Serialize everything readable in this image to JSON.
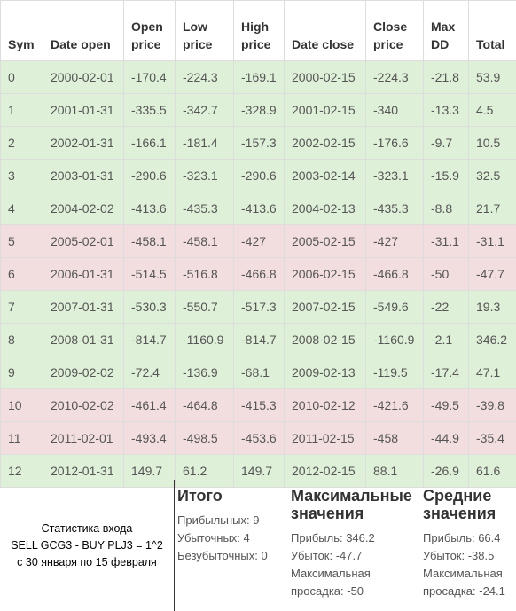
{
  "table": {
    "headers": [
      "Sym",
      "Date open",
      "Open price",
      "Low price",
      "High price",
      "Date close",
      "Close price",
      "Max DD",
      "Total"
    ],
    "rows": [
      {
        "result": "win",
        "cells": [
          "0",
          "2000-02-01",
          "-170.4",
          "-224.3",
          "-169.1",
          "2000-02-15",
          "-224.3",
          "-21.8",
          "53.9"
        ]
      },
      {
        "result": "win",
        "cells": [
          "1",
          "2001-01-31",
          "-335.5",
          "-342.7",
          "-328.9",
          "2001-02-15",
          "-340",
          "-13.3",
          "4.5"
        ]
      },
      {
        "result": "win",
        "cells": [
          "2",
          "2002-01-31",
          "-166.1",
          "-181.4",
          "-157.3",
          "2002-02-15",
          "-176.6",
          "-9.7",
          "10.5"
        ]
      },
      {
        "result": "win",
        "cells": [
          "3",
          "2003-01-31",
          "-290.6",
          "-323.1",
          "-290.6",
          "2003-02-14",
          "-323.1",
          "-15.9",
          "32.5"
        ]
      },
      {
        "result": "win",
        "cells": [
          "4",
          "2004-02-02",
          "-413.6",
          "-435.3",
          "-413.6",
          "2004-02-13",
          "-435.3",
          "-8.8",
          "21.7"
        ]
      },
      {
        "result": "loss",
        "cells": [
          "5",
          "2005-02-01",
          "-458.1",
          "-458.1",
          "-427",
          "2005-02-15",
          "-427",
          "-31.1",
          "-31.1"
        ]
      },
      {
        "result": "loss",
        "cells": [
          "6",
          "2006-01-31",
          "-514.5",
          "-516.8",
          "-466.8",
          "2006-02-15",
          "-466.8",
          "-50",
          "-47.7"
        ]
      },
      {
        "result": "win",
        "cells": [
          "7",
          "2007-01-31",
          "-530.3",
          "-550.7",
          "-517.3",
          "2007-02-15",
          "-549.6",
          "-22",
          "19.3"
        ]
      },
      {
        "result": "win",
        "cells": [
          "8",
          "2008-01-31",
          "-814.7",
          "-1160.9",
          "-814.7",
          "2008-02-15",
          "-1160.9",
          "-2.1",
          "346.2"
        ]
      },
      {
        "result": "win",
        "cells": [
          "9",
          "2009-02-02",
          "-72.4",
          "-136.9",
          "-68.1",
          "2009-02-13",
          "-119.5",
          "-17.4",
          "47.1"
        ]
      },
      {
        "result": "loss",
        "cells": [
          "10",
          "2010-02-02",
          "-461.4",
          "-464.8",
          "-415.3",
          "2010-02-12",
          "-421.6",
          "-49.5",
          "-39.8"
        ]
      },
      {
        "result": "loss",
        "cells": [
          "11",
          "2011-02-01",
          "-493.4",
          "-498.5",
          "-453.6",
          "2011-02-15",
          "-458",
          "-44.9",
          "-35.4"
        ]
      },
      {
        "result": "win",
        "cells": [
          "12",
          "2012-01-31",
          "149.7",
          "61.2",
          "149.7",
          "2012-02-15",
          "88.1",
          "-26.9",
          "61.6"
        ]
      }
    ]
  },
  "colors": {
    "win_row": "#dff0d8",
    "loss_row": "#f2dede",
    "border": "#dddddd"
  },
  "stats": {
    "caption_lines": [
      "Статистика входа",
      "SELL GCG3 - BUY PLJ3 = 1^2",
      "с 30 января по 15 февраля"
    ],
    "totals": {
      "title": "Итого",
      "lines": [
        "Прибыльных: 9",
        "Убыточных: 4",
        "Безубыточных: 0"
      ]
    },
    "max": {
      "title": "Максимальные значения",
      "lines": [
        "Прибыль: 346.2",
        "Убыток: -47.7",
        "Максимальная просадка: -50"
      ]
    },
    "avg": {
      "title": "Средние значения",
      "lines": [
        "Прибыль: 66.4",
        "Убыток: -38.5",
        "Максимальная просадка: -24.1"
      ]
    }
  }
}
